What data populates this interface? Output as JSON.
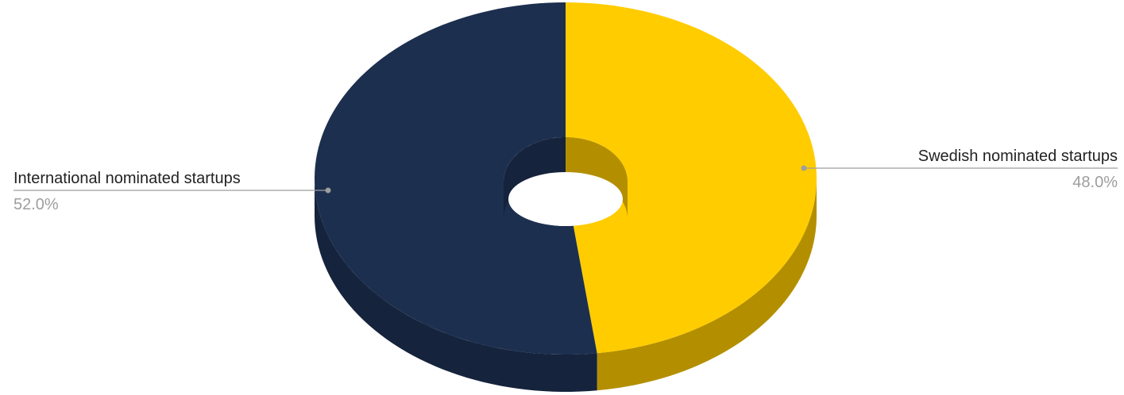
{
  "chart_data": {
    "type": "pie",
    "style": "3d-donut",
    "slices": [
      {
        "label": "Swedish nominated startups",
        "value": 48.0,
        "percent_label": "48.0%",
        "color": "#FFCC00",
        "side_color": "#B38F00"
      },
      {
        "label": "International nominated startups",
        "value": 52.0,
        "percent_label": "52.0%",
        "color": "#1C2F4F",
        "side_color": "#15233C"
      }
    ],
    "legend": "none",
    "labels_position": "outside-with-leader-lines"
  }
}
